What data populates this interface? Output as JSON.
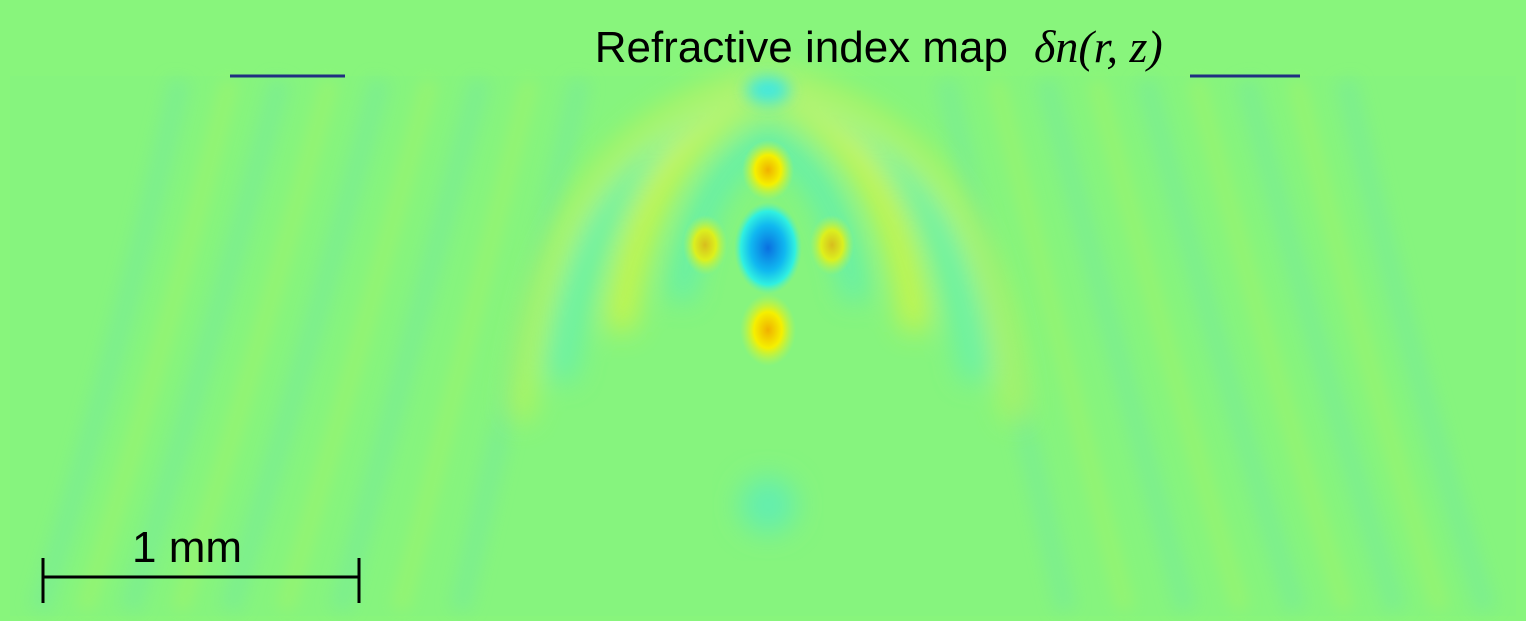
{
  "title": "Refractive index map",
  "title_math": "δn(r, z)",
  "scale_bar": {
    "label": "1 mm"
  }
}
